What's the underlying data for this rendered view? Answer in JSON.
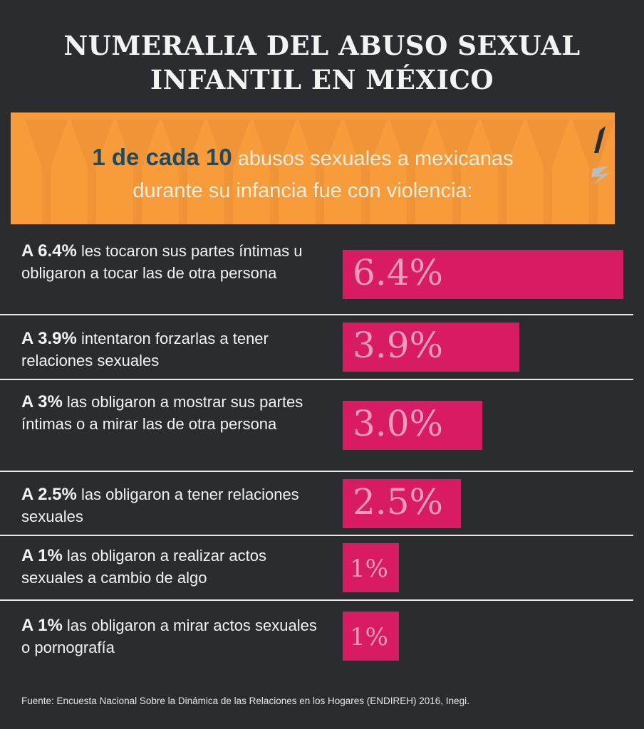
{
  "title_line1": "NUMERALIA DEL ABUSO SEXUAL",
  "title_line2": "INFANTIL EN MÉXICO",
  "banner": {
    "highlight": "1 de cada 10",
    "text_line1": "abusos sexuales a mexicanas",
    "text_line2": "durante su infancia fue con violencia:"
  },
  "chart_data": {
    "type": "bar",
    "orientation": "horizontal",
    "title": "NUMERALIA DEL ABUSO SEXUAL INFANTIL EN MÉXICO",
    "categories": [
      {
        "pct": "A 6.4%",
        "desc": "les tocaron sus partes íntimas u obligaron a tocar las de otra persona"
      },
      {
        "pct": "A 3.9%",
        "desc": "intentaron forzarlas a tener relaciones sexuales"
      },
      {
        "pct": "A 3%",
        "desc": "las obligaron a mostrar sus partes íntimas o a mirar las de otra persona"
      },
      {
        "pct": "A 2.5%",
        "desc": "las obligaron a tener relaciones sexuales"
      },
      {
        "pct": "A 1%",
        "desc": "las obligaron a realizar actos sexuales a cambio de algo"
      },
      {
        "pct": "A 1%",
        "desc": "las obligaron a mirar actos sexuales o pornografía"
      }
    ],
    "values": [
      6.4,
      3.9,
      3.0,
      2.5,
      1,
      1
    ],
    "data_labels": [
      "6.4%",
      "3.9%",
      "3.0%",
      "2.5%",
      "1%",
      "1%"
    ],
    "unit": "%",
    "bar_color": "#d81b63",
    "xlabel": "",
    "ylabel": ""
  },
  "footer": "Fuente: Encuesta Nacional Sobre la Dinámica de las Relaciones en los Hogares (ENDIREH) 2016, Inegi."
}
